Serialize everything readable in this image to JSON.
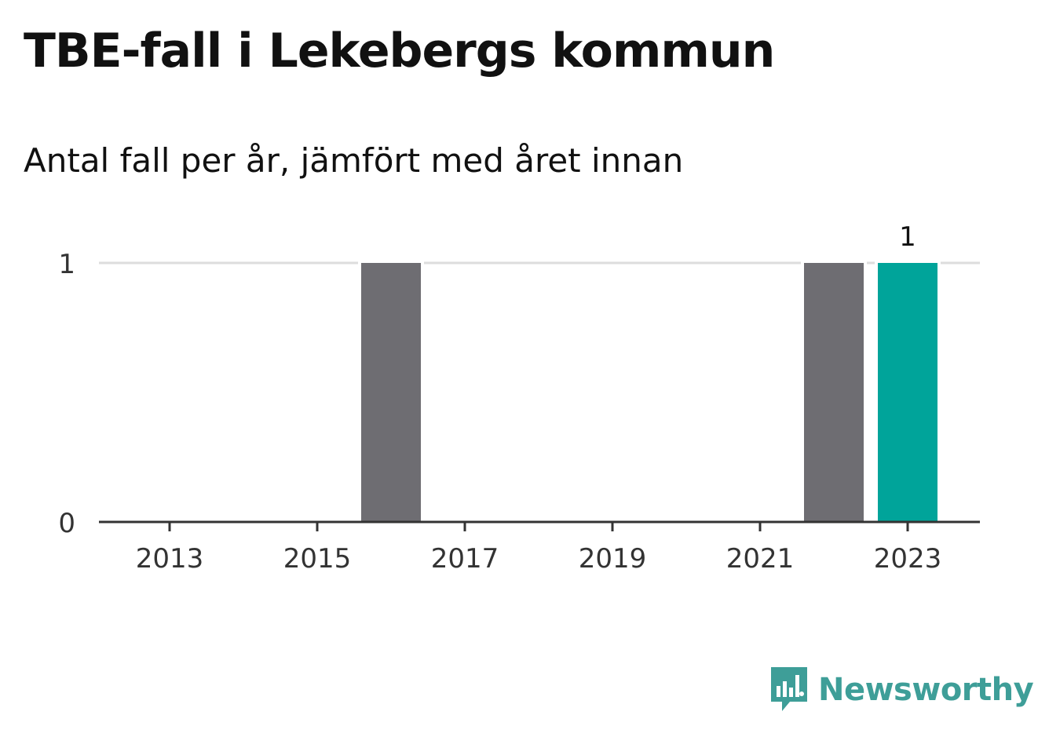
{
  "header": {
    "title": "TBE-fall i Lekebergs kommun",
    "subtitle": "Antal fall per år, jämfört med året innan"
  },
  "brand": {
    "name": "Newsworthy",
    "icon": "newsworthy-logo-icon",
    "color": "#3e9e98"
  },
  "colors": {
    "bar": "#6e6d72",
    "highlight": "#00a49a",
    "grid": "#dddddd",
    "axis": "#333333"
  },
  "chart_data": {
    "type": "bar",
    "title": "TBE-fall i Lekebergs kommun",
    "subtitle": "Antal fall per år, jämfört med året innan",
    "xlabel": "",
    "ylabel": "",
    "categories": [
      2013,
      2014,
      2015,
      2016,
      2017,
      2018,
      2019,
      2020,
      2021,
      2022,
      2023
    ],
    "values": [
      0,
      0,
      0,
      1,
      0,
      0,
      0,
      0,
      0,
      1,
      1
    ],
    "highlight_category": 2023,
    "data_labels": [
      {
        "category": 2023,
        "text": "1"
      }
    ],
    "x_tick_labels": [
      "2013",
      "2015",
      "2017",
      "2019",
      "2021",
      "2023"
    ],
    "y_ticks": [
      0,
      1
    ],
    "ylim": [
      0,
      1
    ],
    "grid": true,
    "legend": "none"
  }
}
